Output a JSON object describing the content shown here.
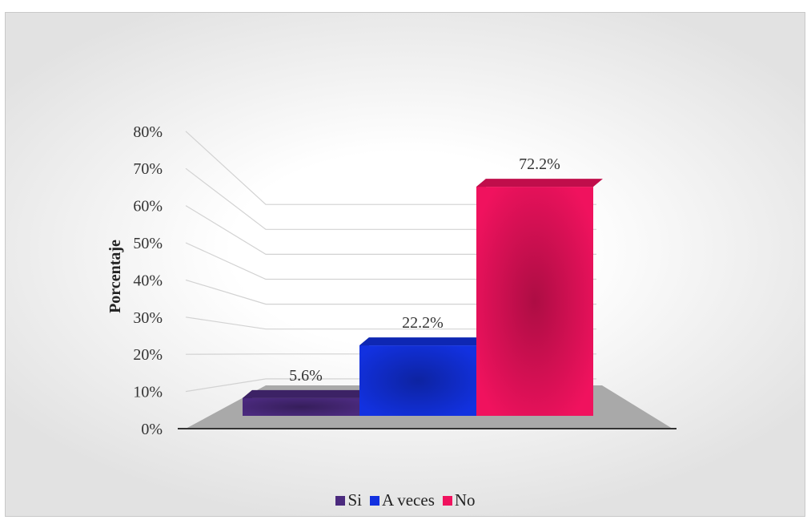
{
  "chart_data": {
    "type": "bar",
    "categories": [
      "Si",
      "A veces",
      "No"
    ],
    "values": [
      5.6,
      22.2,
      72.2
    ],
    "value_labels": [
      "5.6%",
      "22.2%",
      "72.2%"
    ],
    "ylabel": "Porcentaje",
    "xlabel": "",
    "ylim": [
      0,
      80
    ],
    "yticks": [
      "0%",
      "10%",
      "20%",
      "30%",
      "40%",
      "50%",
      "60%",
      "70%",
      "80%"
    ],
    "grid": true,
    "style": "3d",
    "legend_position": "bottom",
    "colors": [
      "#4b2a7e",
      "#1231e0",
      "#f0125e"
    ]
  }
}
